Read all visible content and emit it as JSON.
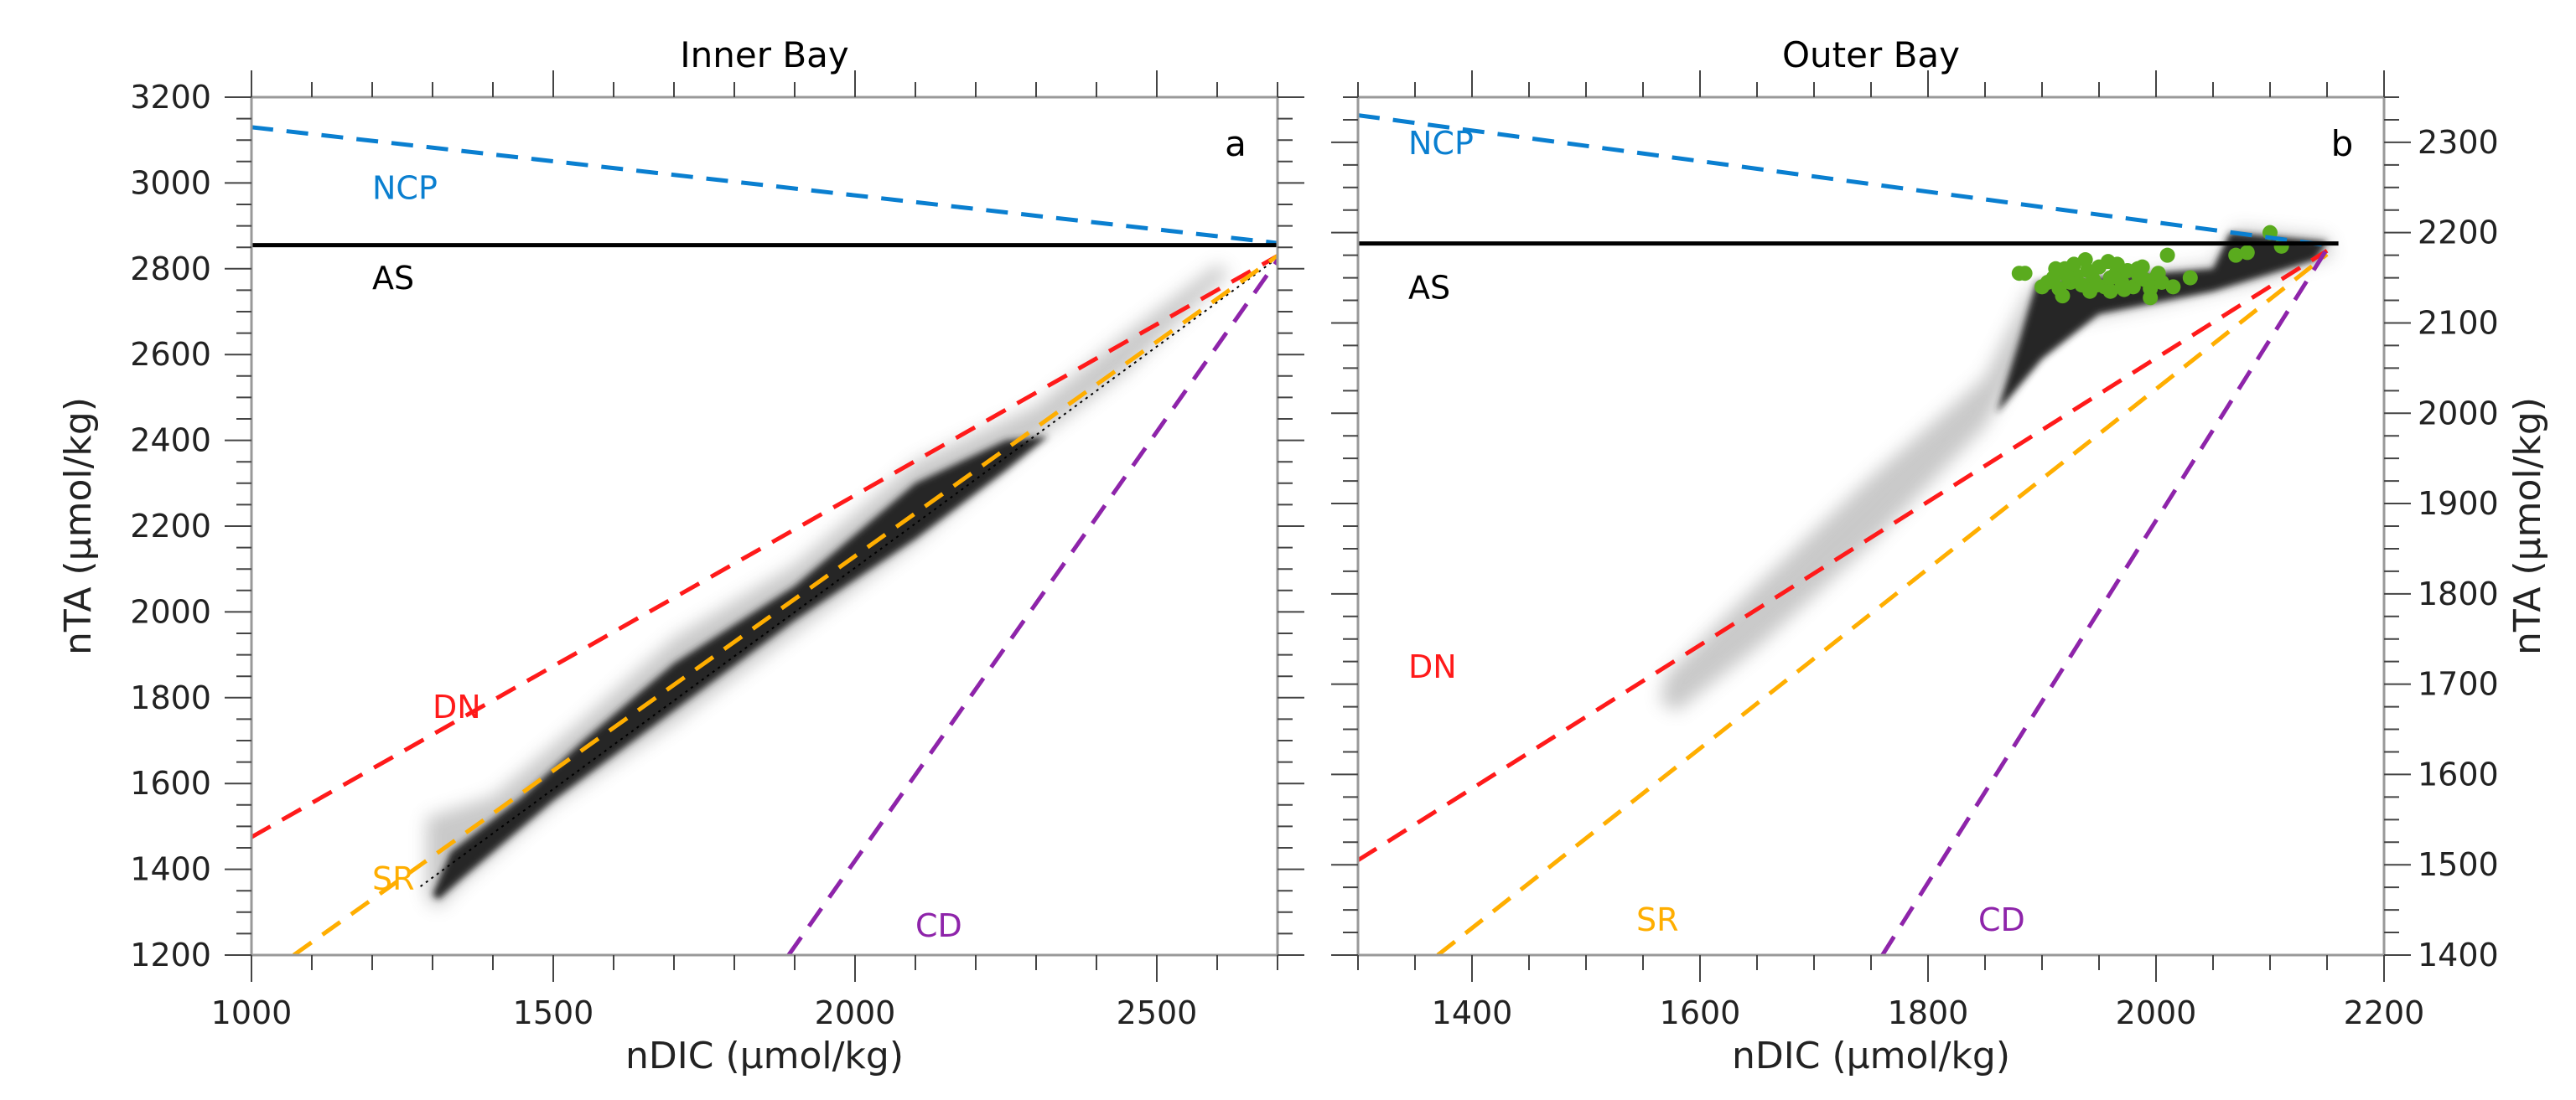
{
  "chart_data": [
    {
      "type": "scatter",
      "panel_letter": "a",
      "title": "Inner Bay",
      "xlabel": "nDIC (μmol/kg)",
      "ylabel": "nTA (μmol/kg)",
      "xlim": [
        1000,
        2700
      ],
      "ylim": [
        1200,
        3200
      ],
      "xticks": [
        1000,
        1500,
        2000,
        2500
      ],
      "yticks": [
        1200,
        1400,
        1600,
        1800,
        2000,
        2200,
        2400,
        2600,
        2800,
        3000,
        3200
      ],
      "y_axis_side": "left",
      "lines": [
        {
          "name": "NCP",
          "color": "#0a7fd0",
          "style": "dashed",
          "x": [
            1000,
            2700
          ],
          "y": [
            3130,
            2860
          ],
          "label_at": [
            1100,
            2990
          ]
        },
        {
          "name": "AS",
          "color": "#000000",
          "style": "solid",
          "x": [
            1000,
            2700
          ],
          "y": [
            2855,
            2855
          ],
          "label_at": [
            1100,
            2780
          ]
        },
        {
          "name": "DN",
          "color": "#ff1a1a",
          "style": "dashed",
          "x": [
            1000,
            2700
          ],
          "y": [
            1475,
            2830
          ],
          "label_at": [
            1200,
            1780
          ]
        },
        {
          "name": "SR",
          "color": "#ffae00",
          "style": "dashed",
          "x": [
            1070,
            2700
          ],
          "y": [
            1200,
            2830
          ],
          "label_at": [
            1100,
            1380
          ]
        },
        {
          "name": "CD",
          "color": "#8e24aa",
          "style": "dashed",
          "x": [
            1890,
            2700
          ],
          "y": [
            1200,
            2820
          ],
          "label_at": [
            2000,
            1270
          ]
        }
      ],
      "fit_line": {
        "color": "#000000",
        "style": "dotted",
        "x": [
          1280,
          2700
        ],
        "y": [
          1360,
          2825
        ]
      },
      "cloud": {
        "light": [
          [
            1290,
            1330
          ],
          [
            1290,
            1520
          ],
          [
            1400,
            1570
          ],
          [
            1550,
            1750
          ],
          [
            1700,
            1940
          ],
          [
            1900,
            2110
          ],
          [
            2100,
            2350
          ],
          [
            2300,
            2480
          ],
          [
            2450,
            2650
          ],
          [
            2600,
            2810
          ],
          [
            2620,
            2790
          ],
          [
            2450,
            2560
          ],
          [
            2300,
            2400
          ],
          [
            2100,
            2160
          ],
          [
            1900,
            1950
          ],
          [
            1700,
            1740
          ],
          [
            1500,
            1550
          ],
          [
            1350,
            1370
          ],
          [
            1310,
            1310
          ]
        ],
        "dark": [
          [
            1300,
            1340
          ],
          [
            1330,
            1440
          ],
          [
            1450,
            1570
          ],
          [
            1550,
            1700
          ],
          [
            1700,
            1880
          ],
          [
            1900,
            2060
          ],
          [
            2100,
            2300
          ],
          [
            2250,
            2400
          ],
          [
            2320,
            2410
          ],
          [
            2250,
            2330
          ],
          [
            2100,
            2170
          ],
          [
            1900,
            1980
          ],
          [
            1700,
            1770
          ],
          [
            1500,
            1560
          ],
          [
            1350,
            1380
          ],
          [
            1310,
            1330
          ]
        ]
      }
    },
    {
      "type": "scatter",
      "panel_letter": "b",
      "title": "Outer Bay",
      "xlabel": "nDIC (μmol/kg)",
      "ylabel": "nTA (μmol/kg)",
      "xlim": [
        1300,
        2200
      ],
      "ylim": [
        1400,
        2350
      ],
      "xticks": [
        1400,
        1600,
        1800,
        2000,
        2200
      ],
      "yticks": [
        1400,
        1500,
        1600,
        1700,
        1800,
        1900,
        2000,
        2100,
        2200,
        2300
      ],
      "y_axis_side": "right",
      "lines": [
        {
          "name": "NCP",
          "color": "#0a7fd0",
          "style": "dashed",
          "x": [
            1300,
            2150
          ],
          "y": [
            2330,
            2186
          ],
          "label_at": [
            1300,
            2300
          ]
        },
        {
          "name": "AS",
          "color": "#000000",
          "style": "solid",
          "x": [
            1300,
            2160
          ],
          "y": [
            2188,
            2188
          ],
          "label_at": [
            1300,
            2140
          ]
        },
        {
          "name": "DN",
          "color": "#ff1a1a",
          "style": "dashed",
          "x": [
            1300,
            2150
          ],
          "y": [
            1505,
            2180
          ],
          "label_at": [
            1300,
            1720
          ]
        },
        {
          "name": "SR",
          "color": "#ffae00",
          "style": "dashed",
          "x": [
            1370,
            2150
          ],
          "y": [
            1400,
            2176
          ],
          "label_at": [
            1500,
            1440
          ]
        },
        {
          "name": "CD",
          "color": "#8e24aa",
          "style": "dashed",
          "x": [
            1760,
            2150
          ],
          "y": [
            1400,
            2182
          ],
          "label_at": [
            1800,
            1440
          ]
        }
      ],
      "cloud": {
        "light": [
          [
            1565,
            1680
          ],
          [
            1570,
            1710
          ],
          [
            1650,
            1810
          ],
          [
            1750,
            1930
          ],
          [
            1850,
            2040
          ],
          [
            1890,
            2140
          ],
          [
            2050,
            2165
          ],
          [
            2070,
            2205
          ],
          [
            2150,
            2195
          ],
          [
            2155,
            2175
          ],
          [
            2100,
            2150
          ],
          [
            2000,
            2120
          ],
          [
            1900,
            2095
          ],
          [
            1850,
            1985
          ],
          [
            1750,
            1855
          ],
          [
            1650,
            1740
          ],
          [
            1580,
            1670
          ]
        ],
        "dark": [
          [
            1880,
            2080
          ],
          [
            1895,
            2145
          ],
          [
            2050,
            2160
          ],
          [
            2065,
            2200
          ],
          [
            2150,
            2190
          ],
          [
            2140,
            2170
          ],
          [
            2050,
            2135
          ],
          [
            1950,
            2110
          ],
          [
            1900,
            2060
          ],
          [
            1860,
            2000
          ]
        ]
      },
      "points": {
        "color": "#5aab1e",
        "x": [
          1880,
          1885,
          1900,
          1905,
          1910,
          1915,
          1920,
          1925,
          1930,
          1935,
          1940,
          1945,
          1950,
          1955,
          1960,
          1965,
          1970,
          1975,
          1980,
          1985,
          1990,
          1995,
          2000,
          2005,
          2010,
          2015,
          1912,
          1928,
          1942,
          1958,
          1972,
          1988,
          2002,
          1918,
          1948,
          1966,
          1984,
          2070,
          2080,
          2100,
          2110,
          1995,
          2030,
          1960,
          1938,
          1922
        ],
        "y": [
          2155,
          2155,
          2140,
          2145,
          2150,
          2138,
          2160,
          2145,
          2152,
          2142,
          2158,
          2148,
          2162,
          2140,
          2150,
          2155,
          2145,
          2158,
          2140,
          2152,
          2148,
          2138,
          2150,
          2145,
          2175,
          2140,
          2160,
          2165,
          2135,
          2168,
          2137,
          2162,
          2155,
          2130,
          2142,
          2165,
          2160,
          2175,
          2178,
          2200,
          2185,
          2128,
          2150,
          2135,
          2170,
          2152
        ]
      }
    }
  ]
}
